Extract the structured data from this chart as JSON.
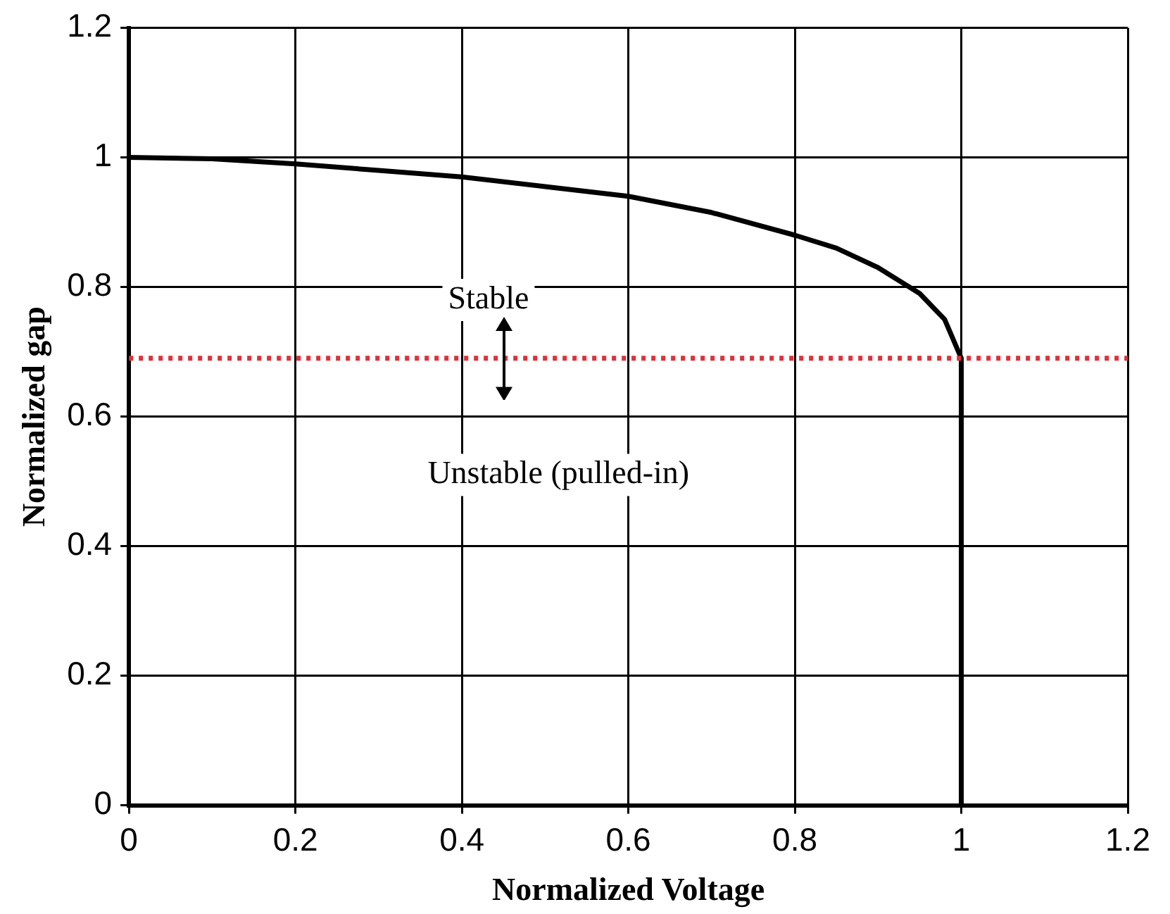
{
  "chart_data": {
    "type": "line",
    "xlabel": "Normalized Voltage",
    "ylabel": "Normalized gap",
    "series": [
      {
        "color": "#000000",
        "x": [
          0,
          0.1,
          0.2,
          0.3,
          0.4,
          0.5,
          0.6,
          0.7,
          0.8,
          0.85,
          0.9,
          0.95,
          0.98,
          1.0,
          1.0
        ],
        "values": [
          1,
          0.998,
          0.99,
          0.98,
          0.97,
          0.955,
          0.94,
          0.915,
          0.88,
          0.86,
          0.83,
          0.79,
          0.75,
          0.69,
          0
        ]
      }
    ],
    "xlim": [
      0,
      1.2
    ],
    "xticks": [
      0,
      0.2,
      0.4,
      0.6,
      0.8,
      1,
      1.2
    ],
    "ylim": [
      0,
      1.2
    ],
    "yticks": [
      0,
      0.2,
      0.4,
      0.6,
      0.8,
      1,
      1.2
    ],
    "grid": true,
    "legend": false,
    "marker": "none",
    "line_style": "solid",
    "ref_lines": [
      {
        "axis": "y",
        "value": 0.69,
        "color": "#e0303a",
        "line_style": "dotted"
      }
    ],
    "annotations": [
      "Stable",
      "Unstable (pulled-in)"
    ]
  }
}
